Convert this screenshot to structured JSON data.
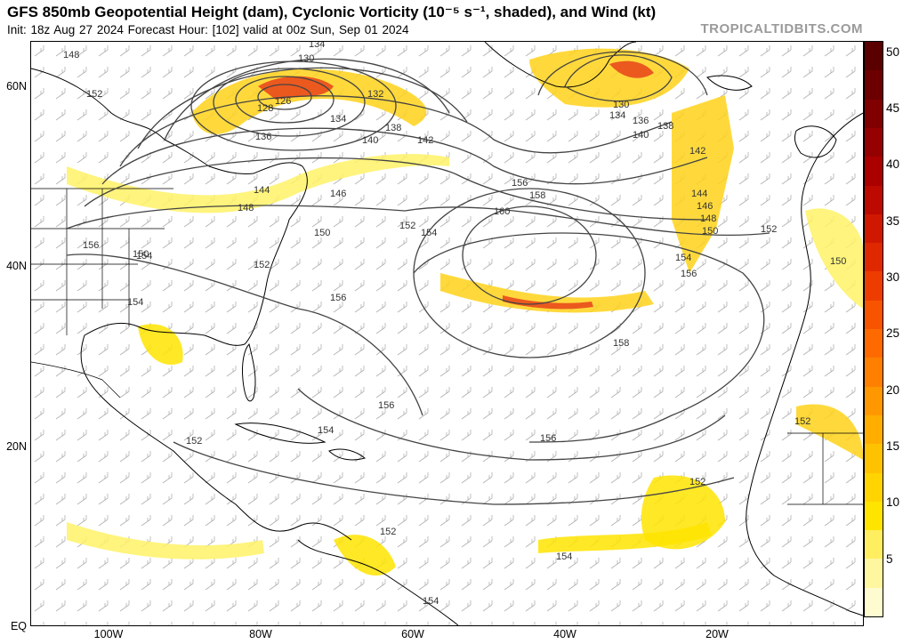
{
  "header": {
    "title": "GFS 850mb Geopotential Height (dam), Cyclonic Vorticity (10⁻⁵ s⁻¹, shaded), and Wind (kt)",
    "subtitle": "Init: 18z Aug 27 2024   Forecast Hour: [102]   valid at 00z Sun, Sep 01 2024",
    "brand": "TROPICALTIDBITS.COM"
  },
  "axes": {
    "lat_labels": [
      "60N",
      "40N",
      "20N",
      "EQ"
    ],
    "lon_labels": [
      "100W",
      "80W",
      "60W",
      "40W",
      "20W"
    ]
  },
  "colorbar": {
    "labels": [
      "5",
      "10",
      "15",
      "20",
      "25",
      "30",
      "35",
      "40",
      "45",
      "50"
    ],
    "colors": [
      "#fffbd0",
      "#fff6a0",
      "#ffee60",
      "#ffe400",
      "#ffd400",
      "#ffc200",
      "#ffae00",
      "#ff9800",
      "#ff8000",
      "#ff6a00",
      "#f85400",
      "#ee3c00",
      "#e02800",
      "#d01800",
      "#bd0a00",
      "#aa0000",
      "#950000",
      "#800000",
      "#6c0000",
      "#5a0000"
    ]
  },
  "contours": {
    "labels": [
      "148",
      "152",
      "134",
      "130",
      "126",
      "128",
      "132",
      "134",
      "136",
      "140",
      "138",
      "142",
      "144",
      "146",
      "148",
      "150",
      "152",
      "156",
      "154",
      "150",
      "152",
      "154",
      "156",
      "158",
      "160",
      "156",
      "154",
      "158",
      "154",
      "156",
      "156",
      "152",
      "154",
      "152",
      "152",
      "154",
      "130",
      "134",
      "136",
      "138",
      "140",
      "142",
      "144",
      "146",
      "148",
      "150",
      "152",
      "154",
      "156",
      "150",
      "152"
    ]
  },
  "map": {
    "land_color": "#ffffff",
    "ocean_color": "#ffffff",
    "vort_light": "#fff266",
    "vort_mid": "#ffd21a",
    "vort_high": "#e8421a",
    "height_contour_color": "#444444"
  }
}
